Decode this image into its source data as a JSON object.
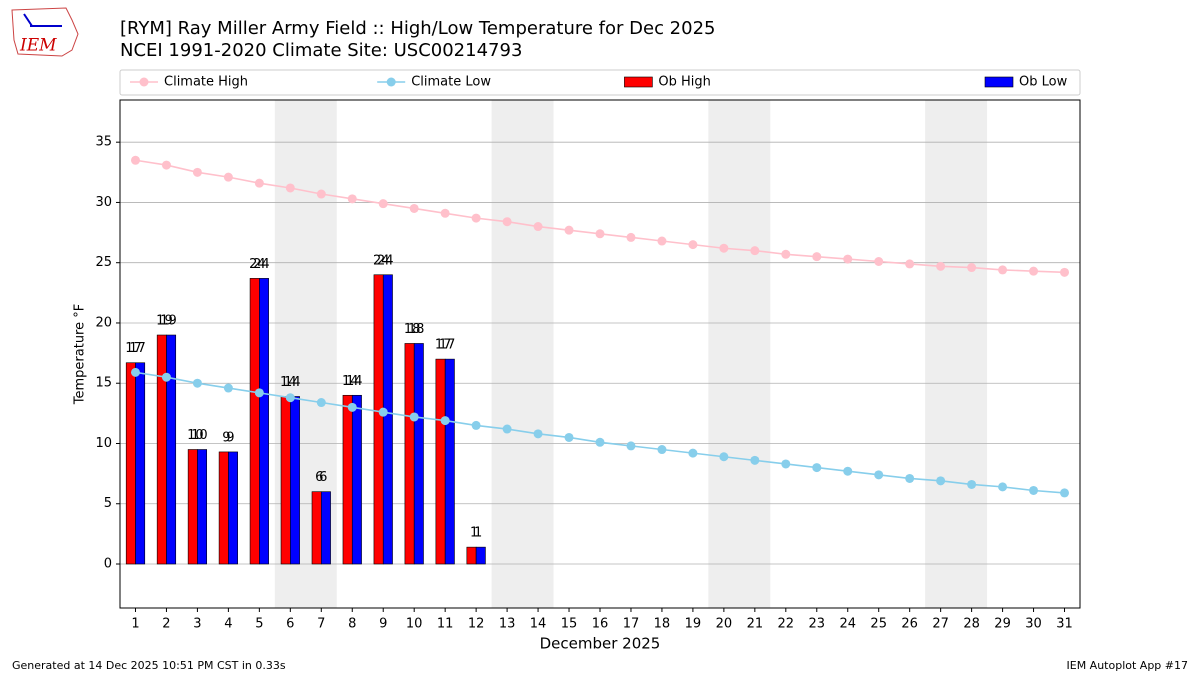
{
  "logo_text": "IEM",
  "footer_left": "Generated at 14 Dec 2025 10:51 PM CST in 0.33s",
  "footer_right": "IEM Autoplot App #17",
  "chart_data": {
    "type": "bar",
    "title": "[RYM] Ray Miller Army Field :: High/Low Temperature for Dec 2025",
    "subtitle": "NCEI 1991-2020 Climate Site: USC00214793",
    "xlabel": "December 2025",
    "ylabel": "Temperature °F",
    "x": [
      1,
      2,
      3,
      4,
      5,
      6,
      7,
      8,
      9,
      10,
      11,
      12,
      13,
      14,
      15,
      16,
      17,
      18,
      19,
      20,
      21,
      22,
      23,
      24,
      25,
      26,
      27,
      28,
      29,
      30,
      31
    ],
    "xlim": [
      0.5,
      31.5
    ],
    "xticks": [
      1,
      2,
      3,
      4,
      5,
      6,
      7,
      8,
      9,
      10,
      11,
      12,
      13,
      14,
      15,
      16,
      17,
      18,
      19,
      20,
      21,
      22,
      23,
      24,
      25,
      26,
      27,
      28,
      29,
      30,
      31
    ],
    "ylim": [
      -3.65,
      38.5
    ],
    "yticks": [
      0,
      5,
      10,
      15,
      20,
      25,
      30,
      35
    ],
    "grid": true,
    "shaded_spans": [
      [
        5.5,
        7.5
      ],
      [
        12.5,
        14.5
      ],
      [
        19.5,
        21.5
      ],
      [
        26.5,
        28.5
      ]
    ],
    "legend": "top",
    "series": [
      {
        "name": "Climate High",
        "kind": "line",
        "color": "#ffc0cb",
        "values": [
          33.5,
          33.1,
          32.5,
          32.1,
          31.6,
          31.2,
          30.7,
          30.3,
          29.9,
          29.5,
          29.1,
          28.7,
          28.4,
          28.0,
          27.7,
          27.4,
          27.1,
          26.8,
          26.5,
          26.2,
          26.0,
          25.7,
          25.5,
          25.3,
          25.1,
          24.9,
          24.7,
          24.6,
          24.4,
          24.3,
          24.2
        ]
      },
      {
        "name": "Climate Low",
        "kind": "line",
        "color": "#87ceeb",
        "values": [
          15.9,
          15.5,
          15.0,
          14.6,
          14.2,
          13.8,
          13.4,
          13.0,
          12.6,
          12.2,
          11.9,
          11.5,
          11.2,
          10.8,
          10.5,
          10.1,
          9.8,
          9.5,
          9.2,
          8.9,
          8.6,
          8.3,
          8.0,
          7.7,
          7.4,
          7.1,
          6.9,
          6.6,
          6.4,
          6.1,
          5.9
        ]
      },
      {
        "name": "Ob High",
        "kind": "bar",
        "color": "#ff0000",
        "values": [
          16.7,
          19.0,
          9.5,
          9.3,
          23.7,
          13.9,
          6.0,
          14.0,
          24.0,
          18.3,
          17.0,
          1.4,
          null,
          null,
          null,
          null,
          null,
          null,
          null,
          null,
          null,
          null,
          null,
          null,
          null,
          null,
          null,
          null,
          null,
          null,
          null
        ],
        "value_labels": [
          "17",
          "19",
          "10",
          "9",
          "24",
          "14",
          "6",
          "14",
          "24",
          "18",
          "17",
          "1",
          null,
          null,
          null,
          null,
          null,
          null,
          null,
          null,
          null,
          null,
          null,
          null,
          null,
          null,
          null,
          null,
          null,
          null,
          null
        ]
      },
      {
        "name": "Ob Low",
        "kind": "bar",
        "color": "#0000ff",
        "values": [
          16.7,
          19.0,
          9.5,
          9.3,
          23.7,
          13.9,
          6.0,
          14.0,
          24.0,
          18.3,
          17.0,
          1.4,
          null,
          null,
          null,
          null,
          null,
          null,
          null,
          null,
          null,
          null,
          null,
          null,
          null,
          null,
          null,
          null,
          null,
          null,
          null
        ],
        "value_labels": [
          "17",
          "19",
          "10",
          "9",
          "24",
          "14",
          "6",
          "14",
          "24",
          "18",
          "17",
          "1",
          null,
          null,
          null,
          null,
          null,
          null,
          null,
          null,
          null,
          null,
          null,
          null,
          null,
          null,
          null,
          null,
          null,
          null,
          null
        ]
      }
    ]
  }
}
